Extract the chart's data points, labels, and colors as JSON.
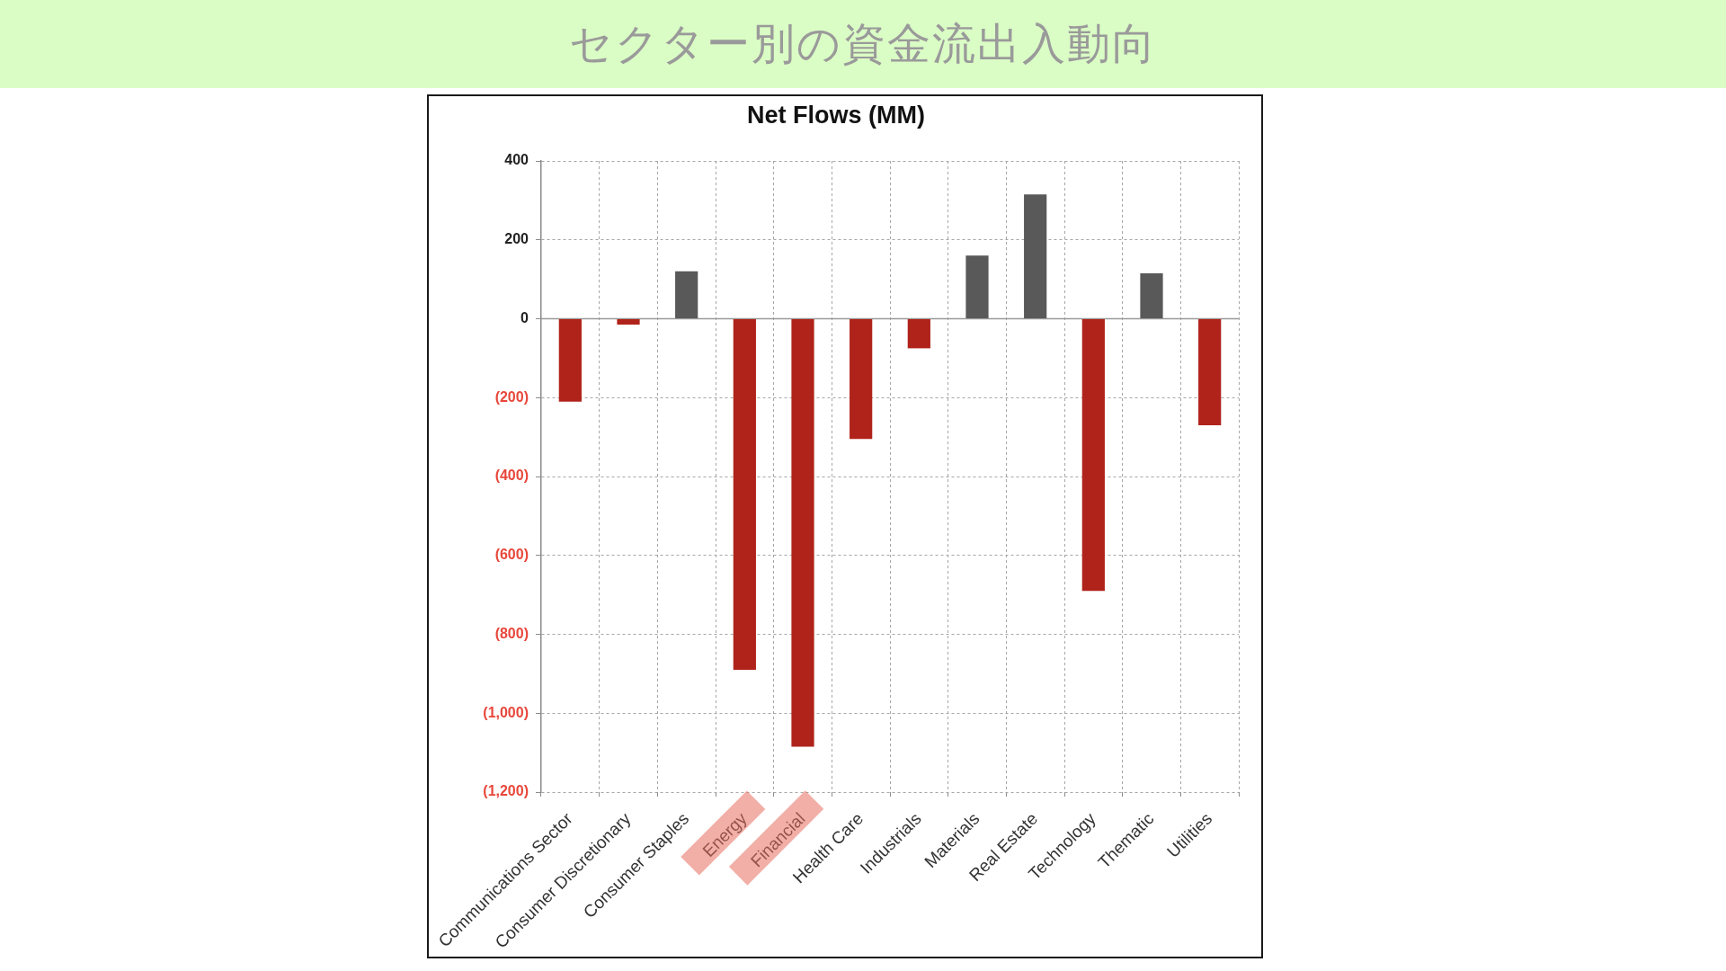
{
  "chart_data": {
    "type": "bar",
    "title": "セクター別の資金流出入動向",
    "subtitle": "Net Flows (MM)",
    "categories": [
      "Communications Sector",
      "Consumer Discretionary",
      "Consumer Staples",
      "Energy",
      "Financial",
      "Health Care",
      "Industrials",
      "Materials",
      "Real Estate",
      "Technology",
      "Thematic",
      "Utilities"
    ],
    "values": [
      -210,
      -15,
      120,
      -890,
      -1085,
      -305,
      -75,
      160,
      315,
      -690,
      115,
      -270
    ],
    "colors": [
      "#b0231a",
      "#b0231a",
      "#595959",
      "#b0231a",
      "#b0231a",
      "#b0231a",
      "#b0231a",
      "#595959",
      "#595959",
      "#b0231a",
      "#595959",
      "#b0231a"
    ],
    "ylim": [
      -1200,
      400
    ],
    "yticks": [
      400,
      200,
      0,
      {
        "value": -200,
        "label": "(200)"
      },
      {
        "value": -400,
        "label": "(400)"
      },
      {
        "value": -600,
        "label": "(600)"
      },
      {
        "value": -800,
        "label": "(800)"
      },
      {
        "value": -1000,
        "label": "(1,000)"
      },
      {
        "value": -1200,
        "label": "(1,200)"
      }
    ],
    "grid": true
  }
}
